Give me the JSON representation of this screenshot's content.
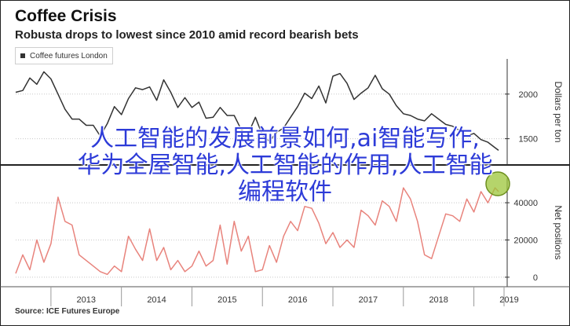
{
  "header": {
    "title": "Coffee Crisis",
    "subtitle": "Robusta drops to lowest since 2010 amid record bearish bets"
  },
  "legend": {
    "label": "Coffee futures London",
    "color": "#333333"
  },
  "source": "Source: ICE Futures Europe",
  "overlay": {
    "line1": "人工智能的发展前景如何,ai智能写作,",
    "line2": "华为全屋智能,人工智能的作用,人工智能",
    "line3": "编程软件",
    "color": "#2d3bd8"
  },
  "chart_data": [
    {
      "type": "line",
      "title": "",
      "xlabel": "",
      "ylabel": "Dollars per ton",
      "x": [
        2012.5,
        2012.6,
        2012.7,
        2012.8,
        2012.9,
        2013.0,
        2013.1,
        2013.2,
        2013.3,
        2013.4,
        2013.5,
        2013.6,
        2013.7,
        2013.8,
        2013.9,
        2014.0,
        2014.1,
        2014.2,
        2014.3,
        2014.4,
        2014.5,
        2014.6,
        2014.7,
        2014.8,
        2014.9,
        2015.0,
        2015.1,
        2015.2,
        2015.3,
        2015.4,
        2015.5,
        2015.6,
        2015.7,
        2015.8,
        2015.9,
        2016.0,
        2016.1,
        2016.2,
        2016.3,
        2016.4,
        2016.5,
        2016.6,
        2016.7,
        2016.8,
        2016.9,
        2017.0,
        2017.1,
        2017.2,
        2017.3,
        2017.4,
        2017.5,
        2017.6,
        2017.7,
        2017.8,
        2017.9,
        2018.0,
        2018.1,
        2018.2,
        2018.3,
        2018.4,
        2018.5,
        2018.6,
        2018.7,
        2018.8,
        2018.9,
        2019.0,
        2019.1,
        2019.2,
        2019.3,
        2019.35
      ],
      "series": [
        {
          "name": "Coffee futures London",
          "values": [
            2020,
            2040,
            2180,
            2110,
            2250,
            2170,
            2000,
            1830,
            1720,
            1720,
            1650,
            1650,
            1530,
            1670,
            1860,
            1770,
            1950,
            2070,
            2050,
            2080,
            1930,
            2160,
            2020,
            1850,
            1960,
            1850,
            1910,
            1730,
            1740,
            1850,
            1760,
            1760,
            1600,
            1560,
            1740,
            1540,
            1470,
            1570,
            1620,
            1740,
            1860,
            2010,
            1950,
            2090,
            1900,
            2200,
            2230,
            2120,
            1940,
            2010,
            2070,
            2210,
            2060,
            2000,
            1870,
            1780,
            1760,
            1720,
            1700,
            1780,
            1720,
            1660,
            1640,
            1590,
            1530,
            1560,
            1490,
            1460,
            1400,
            1370
          ],
          "color": "#333333"
        }
      ],
      "ylim": [
        1250,
        2350
      ],
      "yticks": [
        1500,
        2000
      ],
      "xticks": [
        "2013",
        "2014",
        "2015",
        "2016",
        "2017",
        "2018",
        "2019"
      ]
    },
    {
      "type": "line",
      "title": "",
      "xlabel": "",
      "ylabel": "Net positions",
      "x": [
        2012.5,
        2012.6,
        2012.7,
        2012.8,
        2012.9,
        2013.0,
        2013.1,
        2013.2,
        2013.3,
        2013.4,
        2013.5,
        2013.6,
        2013.7,
        2013.8,
        2013.9,
        2014.0,
        2014.1,
        2014.2,
        2014.3,
        2014.4,
        2014.5,
        2014.6,
        2014.7,
        2014.8,
        2014.9,
        2015.0,
        2015.1,
        2015.2,
        2015.3,
        2015.4,
        2015.5,
        2015.6,
        2015.7,
        2015.8,
        2015.9,
        2016.0,
        2016.1,
        2016.2,
        2016.3,
        2016.4,
        2016.5,
        2016.6,
        2016.7,
        2016.8,
        2016.9,
        2017.0,
        2017.1,
        2017.2,
        2017.3,
        2017.4,
        2017.5,
        2017.6,
        2017.7,
        2017.8,
        2017.9,
        2018.0,
        2018.1,
        2018.2,
        2018.3,
        2018.4,
        2018.5,
        2018.6,
        2018.7,
        2018.8,
        2018.9,
        2019.0,
        2019.1,
        2019.2,
        2019.3,
        2019.35
      ],
      "series": [
        {
          "name": "",
          "values": [
            2000,
            12000,
            4000,
            20000,
            8000,
            18000,
            43000,
            30000,
            28000,
            12000,
            9000,
            6000,
            3000,
            1500,
            6000,
            3000,
            22000,
            15000,
            9000,
            26000,
            9000,
            16000,
            4000,
            9000,
            3000,
            6000,
            14000,
            6000,
            9000,
            28000,
            7000,
            30000,
            14000,
            22000,
            3000,
            4000,
            17000,
            8000,
            22000,
            30000,
            25000,
            38000,
            37000,
            29000,
            18000,
            24000,
            16000,
            20000,
            16000,
            36000,
            33000,
            28000,
            41000,
            38000,
            30000,
            48000,
            42000,
            30000,
            12000,
            10000,
            22000,
            34000,
            33000,
            30000,
            42000,
            35000,
            46000,
            40000,
            48000,
            46000
          ],
          "color": "#e8837c"
        }
      ],
      "ylim": [
        -3000,
        51000
      ],
      "yticks": [
        0,
        20000,
        40000
      ],
      "xticks": [
        "2013",
        "2014",
        "2015",
        "2016",
        "2017",
        "2018",
        "2019"
      ]
    }
  ]
}
